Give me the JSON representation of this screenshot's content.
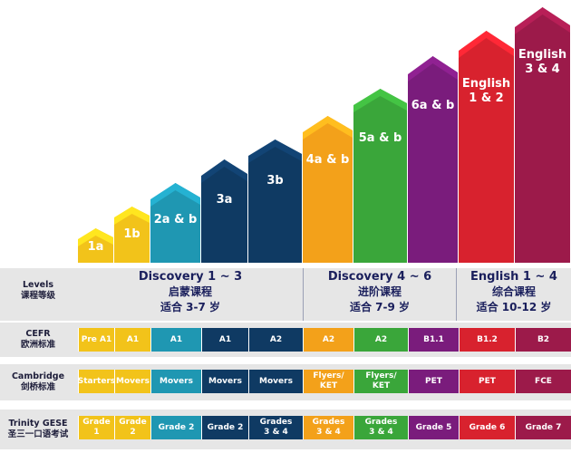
{
  "levels": [
    {
      "label": "1a",
      "color": "#f2c31a"
    },
    {
      "label": "1b",
      "color": "#f2c31a"
    },
    {
      "label": "2a & b",
      "color": "#1f97b2"
    },
    {
      "label": "3a",
      "color": "#0f3a63"
    },
    {
      "label": "3b",
      "color": "#0f3a63"
    },
    {
      "label": "4a & b",
      "color": "#f3a11a"
    },
    {
      "label": "5a & b",
      "color": "#3aa63a"
    },
    {
      "label": "6a & b",
      "color": "#7a1c7c"
    },
    {
      "label": "English\n1 & 2",
      "color": "#d8222e"
    },
    {
      "label": "English\n3 & 4",
      "color": "#9c1a4a"
    }
  ],
  "groups": [
    {
      "en": "Discovery 1 ~ 3",
      "zh1": "启蒙课程",
      "zh2": "适合 3-7 岁"
    },
    {
      "en": "Discovery 4 ~ 6",
      "zh1": "进阶课程",
      "zh2": "适合 7-9 岁"
    },
    {
      "en": "English 1 ~ 4",
      "zh1": "综合课程",
      "zh2": "适合 10-12 岁"
    }
  ],
  "rows": {
    "levels": {
      "en": "Levels",
      "zh": "课程等级"
    },
    "cefr": {
      "en": "CEFR",
      "zh": "欧洲标准",
      "cells": [
        "Pre A1",
        "A1",
        "A1",
        "A1",
        "A2",
        "A2",
        "A2",
        "B1.1",
        "B1.2",
        "B2"
      ]
    },
    "cambridge": {
      "en": "Cambridge",
      "zh": "剑桥标准",
      "cells": [
        "Starters",
        "Movers",
        "Movers",
        "Movers",
        "Movers",
        "Flyers/\nKET",
        "Flyers/\nKET",
        "PET",
        "PET",
        "FCE"
      ]
    },
    "trinity": {
      "en": "Trinity GESE",
      "zh": "圣三一口语考试",
      "cells": [
        "Grade 1",
        "Grade 2",
        "Grade 2",
        "Grade 2",
        "Grades\n3 & 4",
        "Grades\n3 & 4",
        "Grades\n3 & 4",
        "Grade 5",
        "Grade 6",
        "Grade 7"
      ]
    }
  }
}
